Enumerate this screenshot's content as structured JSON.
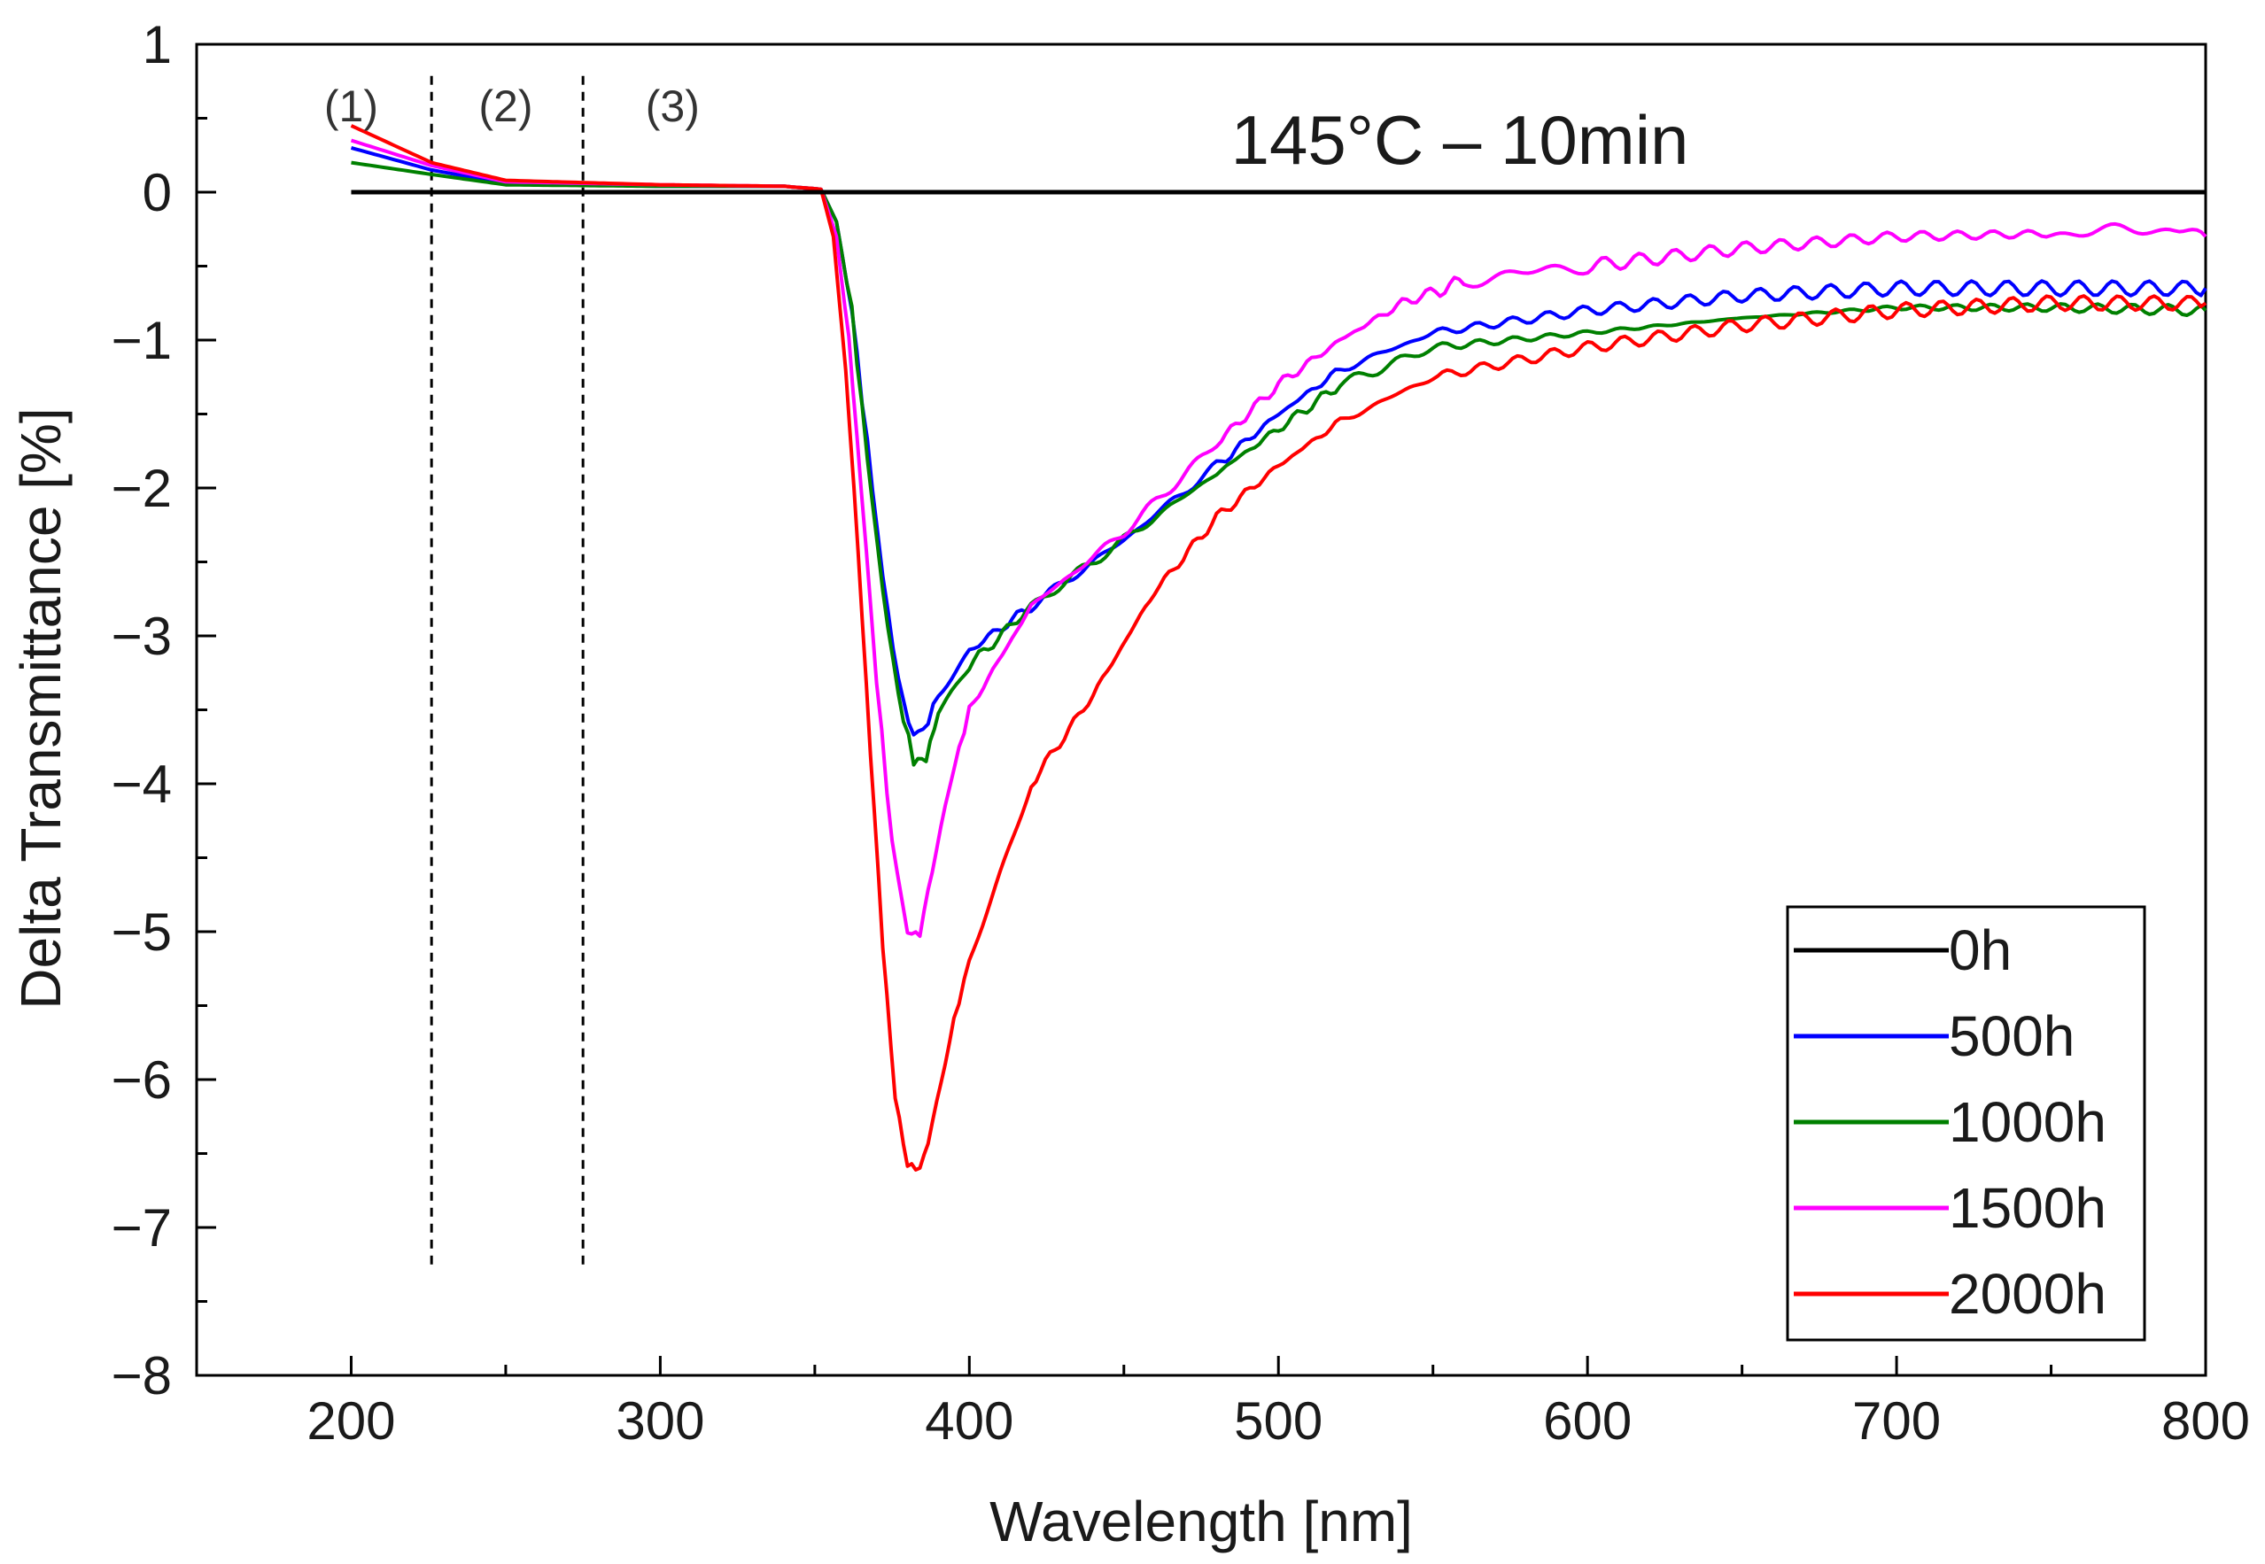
{
  "chart_data": {
    "type": "line",
    "title": "",
    "annotation": "145°C – 10min",
    "xlabel": "Wavelength [nm]",
    "ylabel": "Delta Transmittance [%]",
    "xlim": [
      150,
      800
    ],
    "ylim": [
      -8,
      1
    ],
    "xticks": [
      200,
      300,
      400,
      500,
      600,
      700,
      800
    ],
    "xtick_labels": [
      "200",
      "300",
      "400",
      "500",
      "600",
      "700",
      "800"
    ],
    "yticks": [
      1,
      0,
      -1,
      -2,
      -3,
      -4,
      -5,
      -6,
      -7,
      -8
    ],
    "ytick_labels": [
      "1",
      "0",
      "−1",
      "−2",
      "−3",
      "−4",
      "−5",
      "−6",
      "−7",
      "−8"
    ],
    "grid": false,
    "legend_position": "bottom-right",
    "reference_lines": [
      {
        "x": 226,
        "y_range": [
          -7.25,
          0.8
        ],
        "style": "dashed"
      },
      {
        "x": 275,
        "y_range": [
          -7.25,
          0.8
        ],
        "style": "dashed"
      }
    ],
    "region_labels": [
      {
        "text": "(1)",
        "x": 200,
        "y": 0.48
      },
      {
        "text": "(2)",
        "x": 250,
        "y": 0.48
      },
      {
        "text": "(3)",
        "x": 304,
        "y": 0.48
      }
    ],
    "series": [
      {
        "name": "0h",
        "color": "#000000",
        "points": [
          [
            200,
            0.0
          ],
          [
            800,
            0.0
          ]
        ]
      },
      {
        "name": "500h",
        "color": "#0000ff",
        "points": [
          [
            200,
            0.3
          ],
          [
            226,
            0.15
          ],
          [
            250,
            0.06
          ],
          [
            300,
            0.04
          ],
          [
            340,
            0.04
          ],
          [
            352,
            0.02
          ],
          [
            357,
            -0.2
          ],
          [
            362,
            -0.8
          ],
          [
            367,
            -1.7
          ],
          [
            372,
            -2.6
          ],
          [
            377,
            -3.3
          ],
          [
            382,
            -3.7
          ],
          [
            385,
            -3.65
          ],
          [
            390,
            -3.4
          ],
          [
            400,
            -3.1
          ],
          [
            420,
            -2.8
          ],
          [
            450,
            -2.35
          ],
          [
            480,
            -1.85
          ],
          [
            500,
            -1.5
          ],
          [
            520,
            -1.2
          ],
          [
            550,
            -0.95
          ],
          [
            600,
            -0.8
          ],
          [
            650,
            -0.7
          ],
          [
            700,
            -0.65
          ],
          [
            750,
            -0.65
          ],
          [
            800,
            -0.65
          ]
        ]
      },
      {
        "name": "1000h",
        "color": "#008000",
        "points": [
          [
            200,
            0.2
          ],
          [
            226,
            0.12
          ],
          [
            250,
            0.05
          ],
          [
            300,
            0.04
          ],
          [
            340,
            0.04
          ],
          [
            352,
            0.02
          ],
          [
            357,
            -0.2
          ],
          [
            362,
            -0.8
          ],
          [
            367,
            -1.8
          ],
          [
            372,
            -2.7
          ],
          [
            377,
            -3.4
          ],
          [
            382,
            -3.85
          ],
          [
            386,
            -3.85
          ],
          [
            390,
            -3.5
          ],
          [
            400,
            -3.2
          ],
          [
            420,
            -2.8
          ],
          [
            450,
            -2.35
          ],
          [
            480,
            -1.9
          ],
          [
            500,
            -1.6
          ],
          [
            520,
            -1.3
          ],
          [
            550,
            -1.05
          ],
          [
            600,
            -0.95
          ],
          [
            650,
            -0.85
          ],
          [
            700,
            -0.78
          ],
          [
            750,
            -0.78
          ],
          [
            800,
            -0.8
          ]
        ]
      },
      {
        "name": "1500h",
        "color": "#ff00ff",
        "points": [
          [
            200,
            0.35
          ],
          [
            226,
            0.18
          ],
          [
            250,
            0.07
          ],
          [
            300,
            0.05
          ],
          [
            340,
            0.04
          ],
          [
            352,
            0.02
          ],
          [
            357,
            -0.3
          ],
          [
            361,
            -1.0
          ],
          [
            365,
            -2.0
          ],
          [
            370,
            -3.3
          ],
          [
            375,
            -4.4
          ],
          [
            380,
            -5.0
          ],
          [
            384,
            -5.0
          ],
          [
            388,
            -4.6
          ],
          [
            395,
            -3.9
          ],
          [
            400,
            -3.5
          ],
          [
            420,
            -2.8
          ],
          [
            450,
            -2.3
          ],
          [
            480,
            -1.7
          ],
          [
            500,
            -1.3
          ],
          [
            520,
            -1.0
          ],
          [
            540,
            -0.75
          ],
          [
            560,
            -0.6
          ],
          [
            600,
            -0.5
          ],
          [
            650,
            -0.38
          ],
          [
            700,
            -0.3
          ],
          [
            750,
            -0.28
          ],
          [
            790,
            -0.25
          ],
          [
            800,
            -0.3
          ]
        ]
      },
      {
        "name": "2000h",
        "color": "#ff0000",
        "points": [
          [
            200,
            0.45
          ],
          [
            226,
            0.2
          ],
          [
            250,
            0.08
          ],
          [
            300,
            0.05
          ],
          [
            340,
            0.04
          ],
          [
            352,
            0.02
          ],
          [
            356,
            -0.3
          ],
          [
            360,
            -1.2
          ],
          [
            364,
            -2.4
          ],
          [
            368,
            -3.8
          ],
          [
            372,
            -5.1
          ],
          [
            376,
            -6.1
          ],
          [
            380,
            -6.6
          ],
          [
            384,
            -6.6
          ],
          [
            388,
            -6.3
          ],
          [
            395,
            -5.6
          ],
          [
            400,
            -5.2
          ],
          [
            410,
            -4.6
          ],
          [
            420,
            -4.0
          ],
          [
            440,
            -3.4
          ],
          [
            460,
            -2.7
          ],
          [
            480,
            -2.2
          ],
          [
            500,
            -1.85
          ],
          [
            520,
            -1.55
          ],
          [
            550,
            -1.25
          ],
          [
            600,
            -1.05
          ],
          [
            650,
            -0.9
          ],
          [
            700,
            -0.8
          ],
          [
            750,
            -0.75
          ],
          [
            800,
            -0.75
          ]
        ]
      }
    ]
  }
}
